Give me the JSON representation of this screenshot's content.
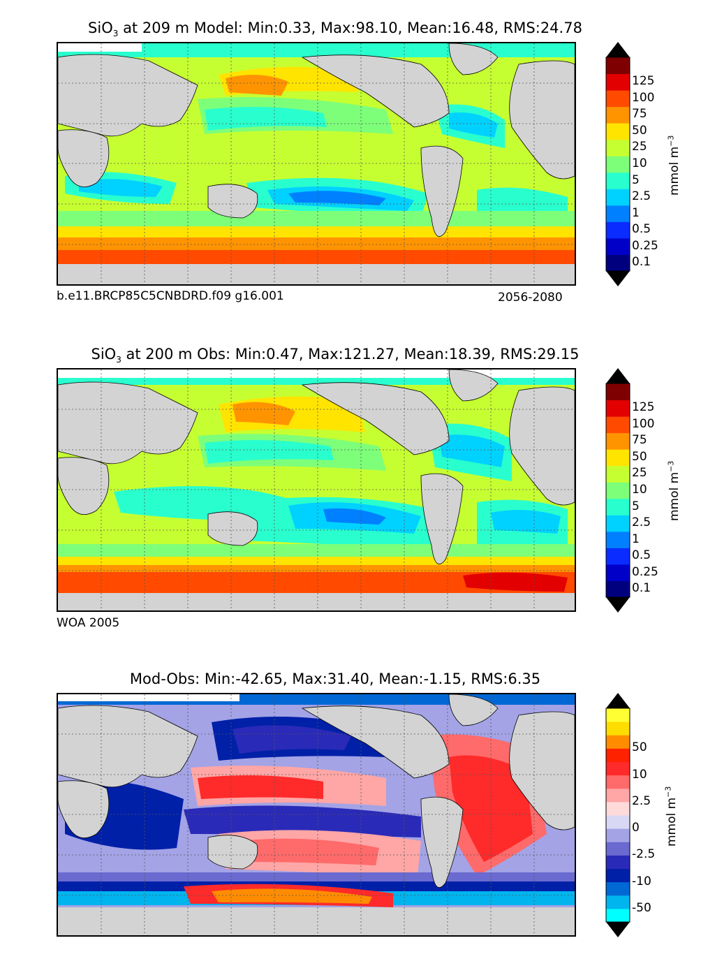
{
  "panels": [
    {
      "id": "model",
      "title_pre": "SiO",
      "title_sub": "3",
      "title_post": " at 209 m Model: Min:0.33, Max:98.10, Mean:16.48, RMS:24.78",
      "caption_left": "b.e11.BRCP85C5CNBDRD.f09 g16.001",
      "caption_right": "2056-2080"
    },
    {
      "id": "obs",
      "title_pre": "SiO",
      "title_sub": "3",
      "title_post": " at 200 m Obs: Min:0.47, Max:121.27, Mean:18.39, RMS:29.15",
      "caption_left": "WOA 2005",
      "caption_right": ""
    },
    {
      "id": "diff",
      "title_pre": "",
      "title_sub": "",
      "title_post": "Mod-Obs: Min:-42.65, Max:31.40, Mean:-1.15, RMS:6.35",
      "caption_left": "",
      "caption_right": ""
    }
  ],
  "colorbars": {
    "concentration": {
      "units": "mmol m",
      "units_sup": "−3",
      "tick_labels": [
        "0.1",
        "0.25",
        "0.5",
        "1",
        "2.5",
        "5",
        "10",
        "25",
        "50",
        "75",
        "100",
        "125"
      ],
      "colors": [
        "#00007f",
        "#0000c8",
        "#0a2cff",
        "#0080ff",
        "#00d2ff",
        "#29ffce",
        "#7dff7a",
        "#c6ff31",
        "#ffe400",
        "#ff9400",
        "#ff4a00",
        "#e30000",
        "#7f0000"
      ],
      "extend_low_color": "#000000",
      "extend_high_color": "#000000"
    },
    "difference": {
      "units": "mmol m",
      "units_sup": "−3",
      "tick_labels": [
        "-50",
        "-10",
        "-2.5",
        "0",
        "2.5",
        "10",
        "50"
      ],
      "colors": [
        "#00ffff",
        "#00b4ee",
        "#0068d4",
        "#0020a8",
        "#2a2ab8",
        "#6a6ad0",
        "#a3a3e6",
        "#d8d8f4",
        "#ffdada",
        "#ffa6a6",
        "#ff6a6a",
        "#ff2a2a",
        "#ff2200",
        "#ff8c00",
        "#ffdd00",
        "#ffff33"
      ]
    }
  },
  "map_colors": {
    "land": "#d3d3d3",
    "missing": "#ffffff",
    "gridline": "#555555"
  }
}
